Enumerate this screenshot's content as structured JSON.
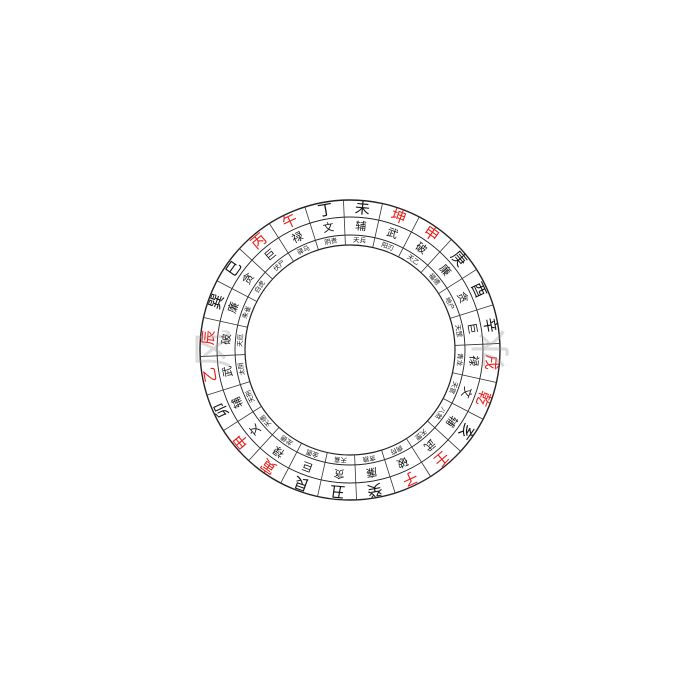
{
  "colors": {
    "line": "#222222",
    "text": "#111111",
    "accent": "#e8201c",
    "background": "#ffffff"
  },
  "rings": {
    "outer": [
      {
        "t": "亥",
        "c": "text"
      },
      {
        "t": "壬",
        "c": "accent"
      },
      {
        "t": "子",
        "c": "accent"
      },
      {
        "t": "癸",
        "c": "text"
      },
      {
        "t": "丑",
        "c": "text"
      },
      {
        "t": "艮",
        "c": "text"
      },
      {
        "t": "寅",
        "c": "accent"
      },
      {
        "t": "甲",
        "c": "accent"
      },
      {
        "t": "卯",
        "c": "text"
      },
      {
        "t": "乙",
        "c": "accent"
      },
      {
        "t": "辰",
        "c": "accent"
      },
      {
        "t": "巽",
        "c": "text"
      },
      {
        "t": "巳",
        "c": "text"
      },
      {
        "t": "丙",
        "c": "accent"
      },
      {
        "t": "午",
        "c": "accent"
      },
      {
        "t": "丁",
        "c": "text"
      },
      {
        "t": "未",
        "c": "text"
      },
      {
        "t": "坤",
        "c": "accent"
      },
      {
        "t": "申",
        "c": "accent"
      },
      {
        "t": "庚",
        "c": "text"
      },
      {
        "t": "酉",
        "c": "text"
      },
      {
        "t": "辛",
        "c": "text"
      },
      {
        "t": "戌",
        "c": "accent"
      },
      {
        "t": "乾",
        "c": "accent"
      }
    ],
    "middle": [
      "辅",
      "武",
      "破",
      "廉",
      "贪",
      "巨",
      "禄",
      "文",
      "辅",
      "武",
      "破",
      "廉",
      "贪",
      "巨",
      "禄",
      "文",
      "辅",
      "武",
      "破",
      "廉",
      "贪",
      "巨",
      "禄",
      "文"
    ],
    "inner": [
      "八煞",
      "天罡",
      "病符",
      "贪狼",
      "天喜",
      "金匮",
      "龙德",
      "天德",
      "天刑",
      "太阴",
      "天厄",
      "朱雀",
      "白虎",
      "伏尸",
      "驿马",
      "阴贵",
      "天兵",
      "阳刃",
      "天乙",
      "福德",
      "地户",
      "天罡",
      "青龙",
      "天官"
    ]
  },
  "watermark": {
    "left": "风",
    "right": "水"
  }
}
